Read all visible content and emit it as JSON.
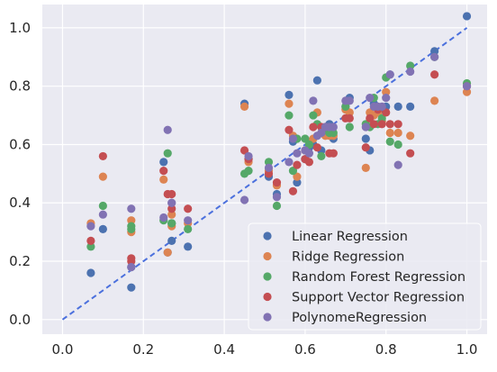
{
  "chart_data": {
    "type": "scatter",
    "title": "",
    "xlabel": "",
    "ylabel": "",
    "xlim": [
      -0.05,
      1.05
    ],
    "ylim": [
      -0.05,
      1.08
    ],
    "xticks": [
      "0.0",
      "0.2",
      "0.4",
      "0.6",
      "0.8",
      "1.0"
    ],
    "yticks": [
      "0.0",
      "0.2",
      "0.4",
      "0.6",
      "0.8",
      "1.0"
    ],
    "grid": true,
    "legend_position": "lower-right",
    "reference_line": {
      "points": [
        [
          0,
          0
        ],
        [
          1,
          1
        ]
      ],
      "style": "dashed",
      "color": "#4b70dd"
    },
    "x": [
      0.07,
      0.1,
      0.17,
      0.17,
      0.25,
      0.26,
      0.27,
      0.27,
      0.31,
      0.45,
      0.46,
      0.51,
      0.53,
      0.56,
      0.57,
      0.58,
      0.6,
      0.61,
      0.62,
      0.63,
      0.64,
      0.65,
      0.66,
      0.67,
      0.7,
      0.71,
      0.75,
      0.76,
      0.77,
      0.78,
      0.79,
      0.8,
      0.81,
      0.83,
      0.86,
      0.92,
      1.0
    ],
    "series": [
      {
        "name": "Linear Regression",
        "color": "#4c72b0",
        "values": [
          0.16,
          0.31,
          0.18,
          0.11,
          0.54,
          0.23,
          0.27,
          0.33,
          0.25,
          0.74,
          0.55,
          0.49,
          0.43,
          0.77,
          0.61,
          0.47,
          0.55,
          0.59,
          0.6,
          0.82,
          0.58,
          0.64,
          0.67,
          0.62,
          0.73,
          0.76,
          0.62,
          0.58,
          0.74,
          0.71,
          0.72,
          0.73,
          0.84,
          0.73,
          0.73,
          0.92,
          1.04
        ]
      },
      {
        "name": "Ridge Regression",
        "color": "#dd8452",
        "values": [
          0.33,
          0.49,
          0.3,
          0.34,
          0.48,
          0.23,
          0.36,
          0.32,
          0.33,
          0.73,
          0.54,
          0.51,
          0.46,
          0.74,
          0.63,
          0.49,
          0.58,
          0.61,
          0.62,
          0.71,
          0.64,
          0.63,
          0.63,
          0.63,
          0.72,
          0.71,
          0.52,
          0.71,
          0.7,
          0.71,
          0.68,
          0.78,
          0.64,
          0.64,
          0.63,
          0.75,
          0.78
        ]
      },
      {
        "name": "Random Forest Regression",
        "color": "#55a868",
        "values": [
          0.25,
          0.39,
          0.32,
          0.31,
          0.34,
          0.57,
          0.33,
          0.33,
          0.31,
          0.5,
          0.51,
          0.54,
          0.39,
          0.7,
          0.51,
          0.62,
          0.62,
          0.6,
          0.7,
          0.67,
          0.56,
          0.65,
          0.64,
          0.64,
          0.73,
          0.66,
          0.67,
          0.66,
          0.76,
          0.67,
          0.69,
          0.83,
          0.61,
          0.6,
          0.87,
          0.9,
          0.81
        ]
      },
      {
        "name": "Support Vector Regression",
        "color": "#c44e52",
        "values": [
          0.27,
          0.56,
          0.2,
          0.21,
          0.51,
          0.43,
          0.38,
          0.43,
          0.38,
          0.58,
          0.55,
          0.5,
          0.47,
          0.65,
          0.44,
          0.53,
          0.55,
          0.54,
          0.66,
          0.59,
          0.66,
          0.66,
          0.57,
          0.57,
          0.69,
          0.69,
          0.59,
          0.69,
          0.67,
          0.72,
          0.67,
          0.71,
          0.67,
          0.67,
          0.57,
          0.84,
          0.8
        ]
      },
      {
        "name": "PolynomeRegression",
        "color": "#8172b3",
        "values": [
          0.32,
          0.36,
          0.38,
          0.18,
          0.35,
          0.65,
          0.4,
          0.4,
          0.34,
          0.41,
          0.56,
          0.52,
          0.42,
          0.54,
          0.62,
          0.57,
          0.58,
          0.57,
          0.75,
          0.63,
          0.64,
          0.66,
          0.66,
          0.66,
          0.75,
          0.75,
          0.66,
          0.76,
          0.73,
          0.73,
          0.73,
          0.76,
          0.84,
          0.53,
          0.85,
          0.9,
          0.8
        ]
      }
    ]
  }
}
